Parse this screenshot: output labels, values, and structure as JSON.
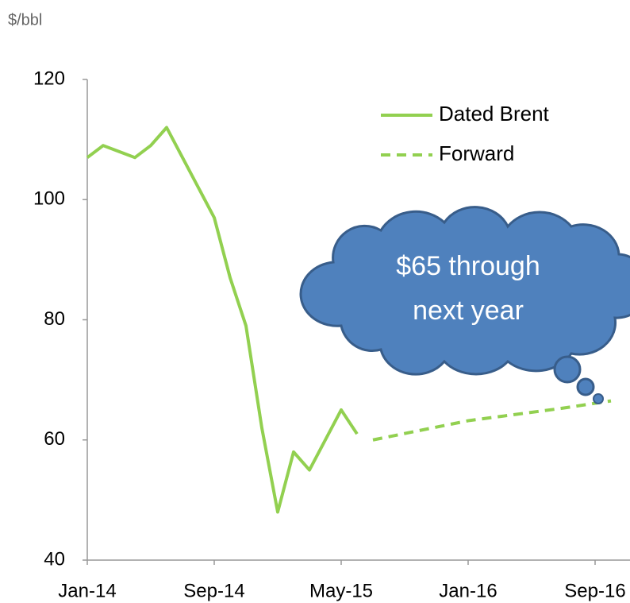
{
  "chart_data": {
    "type": "line",
    "y_label": "$/bbl",
    "annotation": [
      "$65 through",
      "next year"
    ],
    "series": [
      {
        "name": "Dated Brent",
        "color": "#92d050",
        "dash": "solid",
        "x": [
          "2014-01",
          "2014-02",
          "2014-03",
          "2014-04",
          "2014-05",
          "2014-06",
          "2014-07",
          "2014-08",
          "2014-09",
          "2014-10",
          "2014-11",
          "2014-12",
          "2015-01",
          "2015-02",
          "2015-03",
          "2015-04",
          "2015-05",
          "2015-06"
        ],
        "values": [
          107,
          109,
          108,
          107,
          109,
          112,
          107,
          102,
          97,
          87,
          79,
          62,
          48,
          58,
          55,
          60,
          65,
          61
        ]
      },
      {
        "name": "Forward",
        "color": "#92d050",
        "dash": "dashed",
        "x": [
          "2015-07",
          "2016-01",
          "2016-07",
          "2016-10"
        ],
        "values": [
          60,
          63.2,
          65.3,
          66.5
        ]
      }
    ],
    "xlim": [
      "2014-01",
      "2016-11"
    ],
    "xticks": [
      {
        "value": "2014-01",
        "label": "Jan-14"
      },
      {
        "value": "2014-09",
        "label": "Sep-14"
      },
      {
        "value": "2015-05",
        "label": "May-15"
      },
      {
        "value": "2016-01",
        "label": "Jan-16"
      },
      {
        "value": "2016-09",
        "label": "Sep-16"
      }
    ],
    "ylim": [
      40,
      120
    ],
    "yticks": [
      40,
      60,
      80,
      100,
      120
    ],
    "grid": false,
    "legend": "top-right"
  }
}
